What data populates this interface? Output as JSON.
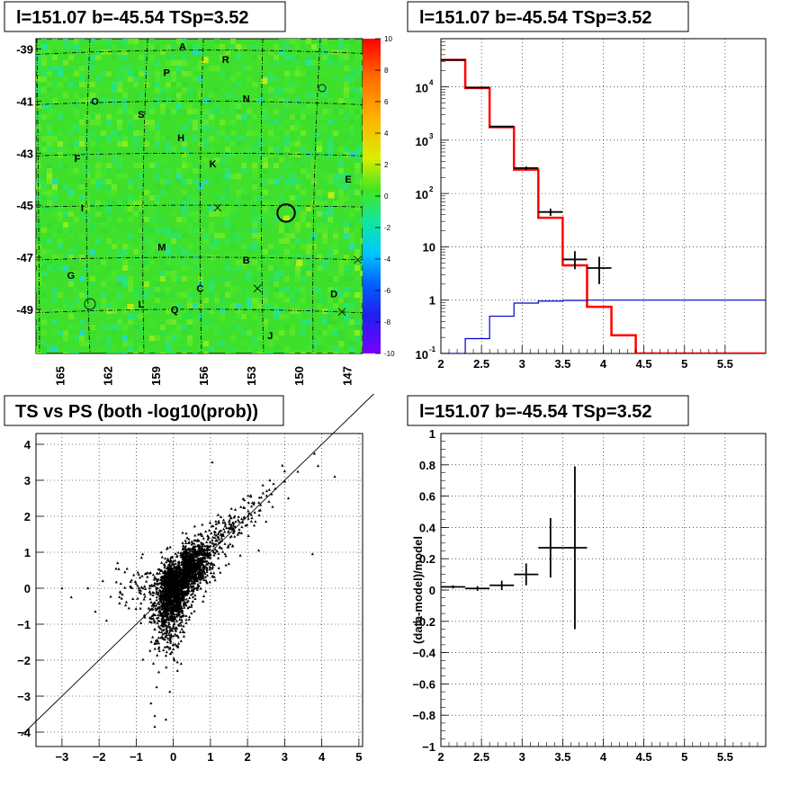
{
  "chart_data": [
    {
      "type": "heatmap",
      "title": "l=151.07 b=-45.54 TSp=3.52",
      "xlabel": "",
      "ylabel": "",
      "xlim": [
        166.5,
        146
      ],
      "ylim": [
        -50.7,
        -38.6
      ],
      "xticks": [
        165,
        162,
        159,
        156,
        153,
        150,
        147
      ],
      "yticks": [
        -39,
        -41,
        -43,
        -45,
        -47,
        -49
      ],
      "colorbar": {
        "min": -10,
        "max": 10,
        "ticks": [
          10,
          8,
          6,
          4,
          2,
          0,
          -2,
          -4,
          -6,
          -8,
          -10
        ]
      },
      "grid_lines_l": [
        165,
        162,
        159,
        156,
        153,
        150,
        147
      ],
      "labels": [
        {
          "text": "A",
          "l": 157.3,
          "b": -38.9
        },
        {
          "text": "R",
          "l": 154.6,
          "b": -39.4
        },
        {
          "text": "P",
          "l": 158.3,
          "b": -39.9
        },
        {
          "text": "N",
          "l": 153.3,
          "b": -40.9
        },
        {
          "text": "O",
          "l": 162.8,
          "b": -41.0
        },
        {
          "text": "S",
          "l": 159.9,
          "b": -41.5
        },
        {
          "text": "H",
          "l": 157.4,
          "b": -42.4
        },
        {
          "text": "F",
          "l": 163.9,
          "b": -43.2
        },
        {
          "text": "K",
          "l": 155.4,
          "b": -43.4
        },
        {
          "text": "E",
          "l": 146.9,
          "b": -44.0
        },
        {
          "text": "I",
          "l": 163.6,
          "b": -45.1
        },
        {
          "text": "M",
          "l": 158.6,
          "b": -46.6
        },
        {
          "text": "B",
          "l": 153.3,
          "b": -47.1
        },
        {
          "text": "G",
          "l": 164.3,
          "b": -47.7
        },
        {
          "text": "C",
          "l": 156.2,
          "b": -48.2
        },
        {
          "text": "D",
          "l": 147.8,
          "b": -48.4
        },
        {
          "text": "L",
          "l": 159.9,
          "b": -48.8
        },
        {
          "text": "Q",
          "l": 157.8,
          "b": -49.0
        },
        {
          "text": "J",
          "l": 151.8,
          "b": -50.0
        }
      ],
      "crosses": [
        [
          155.1,
          -45.1
        ],
        [
          152.6,
          -48.2
        ],
        [
          147.3,
          -49.1
        ],
        [
          146.3,
          -47.1
        ]
      ],
      "circle": {
        "l": 150.8,
        "b": -45.3,
        "r_deg": 0.55
      },
      "colors": {
        "background": "#39e02e",
        "frame": "#000000"
      }
    },
    {
      "type": "line",
      "title": "l=151.07 b=-45.54 TSp=3.52",
      "xlabel": "",
      "ylabel": "",
      "xlim": [
        2,
        6.0
      ],
      "ylim": [
        0.1,
        80000
      ],
      "yscale": "log",
      "xticks": [
        "2",
        "2.5",
        "3",
        "3.5",
        "4",
        "4.5",
        "5",
        "5.5"
      ],
      "yticks": [
        "10^-1",
        "1",
        "10",
        "10^2",
        "10^3",
        "10^4"
      ],
      "series": [
        {
          "color": "#ff0000",
          "style": "step",
          "edges": [
            2.0,
            2.3,
            2.6,
            2.9,
            3.2,
            3.5,
            3.8,
            4.1,
            4.4,
            6.0
          ],
          "values": [
            32000,
            9500,
            1750,
            280,
            35,
            4.5,
            0.75,
            0.22,
            0.1
          ]
        },
        {
          "color": "#000000",
          "style": "errorbar",
          "points": [
            {
              "x": 2.15,
              "xerr": 0.15,
              "y": 32000,
              "ylo": 31000,
              "yhi": 33000
            },
            {
              "x": 2.45,
              "xerr": 0.15,
              "y": 9700,
              "ylo": 9500,
              "yhi": 9900
            },
            {
              "x": 2.75,
              "xerr": 0.15,
              "y": 1800,
              "ylo": 1750,
              "yhi": 1850
            },
            {
              "x": 3.05,
              "xerr": 0.15,
              "y": 300,
              "ylo": 280,
              "yhi": 320
            },
            {
              "x": 3.35,
              "xerr": 0.15,
              "y": 45,
              "ylo": 38,
              "yhi": 52
            },
            {
              "x": 3.65,
              "xerr": 0.15,
              "y": 5.8,
              "ylo": 3.8,
              "yhi": 8.3
            },
            {
              "x": 3.95,
              "xerr": 0.15,
              "y": 4,
              "ylo": 2,
              "yhi": 6.5
            }
          ]
        },
        {
          "color": "#0000cc",
          "style": "step",
          "edges": [
            2.0,
            2.3,
            2.6,
            2.9,
            3.2,
            3.5,
            3.8,
            4.1,
            6.0
          ],
          "values": [
            0.1,
            0.19,
            0.5,
            0.88,
            0.96,
            0.99,
            1.0,
            1.0
          ]
        }
      ]
    },
    {
      "type": "scatter",
      "title": "TS vs PS (both -log10(prob))",
      "xlabel": "",
      "ylabel": "",
      "xlim": [
        -3.7,
        5.1
      ],
      "ylim": [
        -4.4,
        4.3
      ],
      "xticks": [
        "-3",
        "-2",
        "-1",
        "0",
        "1",
        "2",
        "3",
        "4",
        "5"
      ],
      "yticks": [
        "-4",
        "-3",
        "-2",
        "-1",
        "0",
        "1",
        "2",
        "3",
        "4"
      ],
      "diagonal": {
        "slope": 1,
        "intercept": 0
      },
      "n_points": 2600,
      "outliers": [
        [
          4.35,
          3.1
        ],
        [
          3.9,
          3.4
        ],
        [
          3.0,
          3.25
        ],
        [
          3.75,
          0.95
        ],
        [
          3.1,
          2.5
        ],
        [
          2.6,
          3.0
        ],
        [
          1.05,
          3.5
        ],
        [
          -3.0,
          0.0
        ],
        [
          -2.75,
          -0.25
        ],
        [
          -2.3,
          0.0
        ],
        [
          -1.9,
          0.2
        ],
        [
          -1.8,
          -0.9
        ],
        [
          -2.1,
          -0.65
        ],
        [
          -1.5,
          0.7
        ],
        [
          -0.5,
          -3.55
        ],
        [
          -0.6,
          -3.2
        ],
        [
          -0.2,
          -3.65
        ],
        [
          -0.5,
          -3.85
        ],
        [
          -0.45,
          -2.75
        ],
        [
          2.3,
          1.05
        ],
        [
          2.7,
          2.9
        ],
        [
          2.5,
          1.85
        ]
      ]
    },
    {
      "type": "line",
      "title": "l=151.07 b=-45.54 TSp=3.52",
      "xlabel": "",
      "ylabel": "(data-model)/model",
      "xlim": [
        2,
        6.0
      ],
      "ylim": [
        -1,
        1
      ],
      "xticks": [
        "2",
        "2.5",
        "3",
        "3.5",
        "4",
        "4.5",
        "5",
        "5.5"
      ],
      "yticks": [
        "-1",
        "-0.8",
        "-0.6",
        "-0.4",
        "-0.2",
        "0",
        "0.2",
        "0.4",
        "0.6",
        "0.8",
        "1"
      ],
      "series": [
        {
          "color": "#000000",
          "style": "errorbar",
          "points": [
            {
              "x": 2.15,
              "xerr": 0.15,
              "y": 0.02,
              "ylo": 0.01,
              "yhi": 0.03
            },
            {
              "x": 2.45,
              "xerr": 0.15,
              "y": 0.01,
              "ylo": -0.005,
              "yhi": 0.025
            },
            {
              "x": 2.75,
              "xerr": 0.15,
              "y": 0.03,
              "ylo": 0.0,
              "yhi": 0.06
            },
            {
              "x": 3.05,
              "xerr": 0.15,
              "y": 0.1,
              "ylo": 0.03,
              "yhi": 0.17
            },
            {
              "x": 3.35,
              "xerr": 0.15,
              "y": 0.27,
              "ylo": 0.08,
              "yhi": 0.46
            },
            {
              "x": 3.65,
              "xerr": 0.15,
              "y": 0.27,
              "ylo": -0.25,
              "yhi": 0.79
            }
          ]
        }
      ]
    }
  ]
}
